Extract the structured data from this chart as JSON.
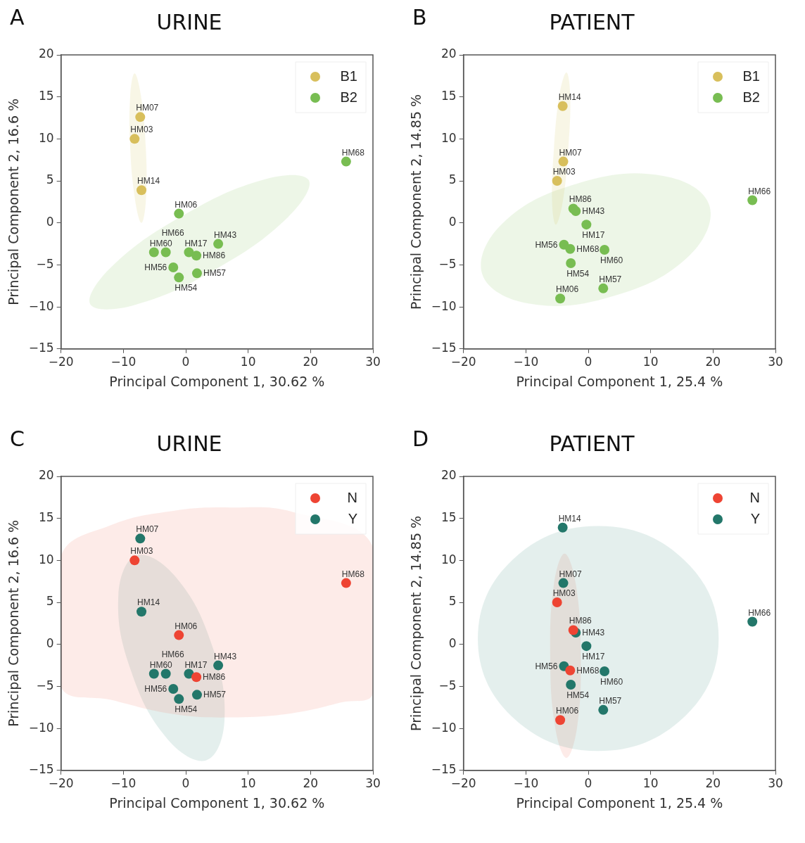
{
  "chart_data": [
    {
      "type": "scatter",
      "title": "URINE",
      "xlabel": "Principal Component 1, 30.62 %",
      "ylabel": "Principal Component 2, 16.6 %",
      "xlim": [
        -20,
        30
      ],
      "ylim": [
        -15,
        20
      ],
      "xticks": [
        -20,
        -10,
        0,
        10,
        20,
        30
      ],
      "yticks": [
        -15,
        -10,
        -5,
        0,
        5,
        10,
        15,
        20
      ],
      "legend": "top right",
      "series": [
        {
          "type": "area",
          "color": "#d6c766",
          "x": [
            -8.2,
            -7.2,
            -6.4,
            -6.4,
            -7.1,
            -8.1,
            -8.9,
            -8.9
          ],
          "values": [
            17.8,
            15.2,
            8.9,
            2.6,
            0.0,
            2.6,
            8.9,
            15.2
          ]
        },
        {
          "type": "area",
          "color": "#8cc46a",
          "x": [
            19.7,
            12.7,
            -0.4,
            -12.0,
            -15.3,
            -8.3,
            4.8,
            16.4
          ],
          "values": [
            5.1,
            5.2,
            0.9,
            -5.3,
            -9.7,
            -9.8,
            -5.5,
            0.7
          ]
        },
        {
          "name": "B1",
          "color": "#d8bf5c",
          "marker": "circle",
          "x": [
            -7.3,
            -8.2,
            -7.1
          ],
          "values": [
            12.6,
            10.0,
            3.9
          ]
        },
        {
          "name": "B2",
          "color": "#78bd52",
          "marker": "circle",
          "x": [
            -1.1,
            25.7,
            -5.1,
            -3.2,
            0.5,
            1.7,
            5.2,
            -2.0,
            -1.1,
            1.8
          ],
          "values": [
            1.1,
            7.3,
            -3.5,
            -3.5,
            -3.5,
            -3.9,
            -2.5,
            -5.3,
            -6.5,
            -6.0
          ]
        }
      ],
      "annotations": [
        "A",
        {
          "text": "HM07",
          "x": -7.3,
          "y": 12.6
        },
        {
          "text": "HM03",
          "x": -8.2,
          "y": 10.0
        },
        {
          "text": "HM14",
          "x": -7.1,
          "y": 3.9
        },
        {
          "text": "HM06",
          "x": -1.1,
          "y": 1.1
        },
        {
          "text": "HM68",
          "x": 25.7,
          "y": 7.3
        },
        {
          "text": "HM60",
          "x": -5.1,
          "y": -3.5
        },
        {
          "text": "HM66",
          "x": -3.2,
          "y": -3.5
        },
        {
          "text": "HM17",
          "x": 0.5,
          "y": -3.5
        },
        {
          "text": "HM86",
          "x": 1.7,
          "y": -3.9
        },
        {
          "text": "HM43",
          "x": 5.2,
          "y": -2.5
        },
        {
          "text": "HM56",
          "x": -2.0,
          "y": -5.3
        },
        {
          "text": "HM54",
          "x": -1.1,
          "y": -6.5
        },
        {
          "text": "HM57",
          "x": 1.8,
          "y": -6.0
        }
      ]
    },
    {
      "type": "scatter",
      "title": "PATIENT",
      "xlabel": "Principal Component 1, 25.4 %",
      "ylabel": "Principal Component 2, 14.85 %",
      "xlim": [
        -20,
        30
      ],
      "ylim": [
        -15,
        20
      ],
      "xticks": [
        -20,
        -10,
        0,
        10,
        20,
        30
      ],
      "yticks": [
        -15,
        -10,
        -5,
        0,
        5,
        10,
        15,
        20
      ],
      "legend": "top right",
      "series": [
        {
          "type": "area",
          "color": "#d6c766",
          "x": [
            -3.5,
            -2.9,
            -3.2,
            -4.1,
            -5.2,
            -5.8,
            -5.5,
            -4.6
          ],
          "values": [
            17.9,
            15.3,
            8.9,
            2.5,
            -0.2,
            2.5,
            8.9,
            15.3
          ]
        },
        {
          "type": "area",
          "color": "#8cc46a",
          "x": [
            19.4,
            16.2,
            4.1,
            -9.6,
            -17.0,
            -13.8,
            -1.7,
            12.0
          ],
          "values": [
            2.1,
            -3.9,
            -8.7,
            -9.6,
            -6.1,
            -0.1,
            4.7,
            5.6
          ]
        },
        {
          "name": "B1",
          "color": "#d8bf5c",
          "marker": "circle",
          "x": [
            -4.1,
            -4.0,
            -5.0
          ],
          "values": [
            13.9,
            7.3,
            5.0
          ]
        },
        {
          "name": "B2",
          "color": "#78bd52",
          "marker": "circle",
          "x": [
            -2.4,
            -2.0,
            -0.3,
            -3.9,
            -2.9,
            2.6,
            -2.8,
            -4.5,
            2.4,
            26.3
          ],
          "values": [
            1.7,
            1.4,
            -0.2,
            -2.6,
            -3.1,
            -3.2,
            -4.8,
            -9.0,
            -7.8,
            2.7
          ]
        }
      ],
      "annotations": [
        "B",
        {
          "text": "HM14",
          "x": -4.1,
          "y": 13.9
        },
        {
          "text": "HM07",
          "x": -4.0,
          "y": 7.3
        },
        {
          "text": "HM03",
          "x": -5.0,
          "y": 5.0
        },
        {
          "text": "HM86",
          "x": -2.4,
          "y": 1.7
        },
        {
          "text": "HM43",
          "x": -2.0,
          "y": 1.4
        },
        {
          "text": "HM17",
          "x": -0.3,
          "y": -0.2
        },
        {
          "text": "HM56",
          "x": -3.9,
          "y": -2.6
        },
        {
          "text": "HM68",
          "x": -2.9,
          "y": -3.1
        },
        {
          "text": "HM60",
          "x": 2.6,
          "y": -3.2
        },
        {
          "text": "HM54",
          "x": -2.8,
          "y": -4.8
        },
        {
          "text": "HM06",
          "x": -4.5,
          "y": -9.0
        },
        {
          "text": "HM57",
          "x": 2.4,
          "y": -7.8
        },
        {
          "text": "HM66",
          "x": 26.3,
          "y": 2.7
        }
      ]
    },
    {
      "type": "scatter",
      "title": "URINE",
      "xlabel": "Principal Component 1, 30.62 %",
      "ylabel": "Principal Component 2, 16.6 %",
      "xlim": [
        -20,
        30
      ],
      "ylim": [
        -15,
        20
      ],
      "xticks": [
        -20,
        -10,
        0,
        10,
        20,
        30
      ],
      "yticks": [
        -15,
        -10,
        -5,
        0,
        5,
        10,
        15,
        20
      ],
      "legend": "top right",
      "series": [
        {
          "type": "area",
          "color": "#f08070",
          "x": [
            -20,
            -12,
            -2,
            7.1,
            17,
            30,
            30,
            25,
            17,
            7.1,
            -2,
            -12,
            -20
          ],
          "values": [
            10.5,
            14.2,
            15.9,
            16.3,
            15.8,
            11.6,
            -5.8,
            -6.9,
            -8.2,
            -8.7,
            -8.3,
            -6.6,
            -5.0
          ]
        },
        {
          "type": "area",
          "color": "#5a9a90",
          "x": [
            -7.9,
            -1.7,
            4.2,
            6.2,
            3.3,
            -2.9,
            -8.8,
            -10.8
          ],
          "values": [
            10.6,
            8.1,
            -0.1,
            -9.1,
            -13.8,
            -11.3,
            -3.1,
            5.9
          ]
        },
        {
          "name": "N",
          "color": "#ee4433",
          "marker": "circle",
          "x": [
            -8.2,
            -1.1,
            25.7,
            1.7
          ],
          "values": [
            10.0,
            1.1,
            7.3,
            -3.9
          ]
        },
        {
          "name": "Y",
          "color": "#23776a",
          "marker": "circle",
          "x": [
            -7.3,
            -7.1,
            -5.1,
            -3.2,
            0.5,
            5.2,
            -2.0,
            -1.1,
            1.8
          ],
          "values": [
            12.6,
            3.9,
            -3.5,
            -3.5,
            -3.5,
            -2.5,
            -5.3,
            -6.5,
            -6.0
          ]
        }
      ],
      "annotations": [
        "C",
        {
          "text": "HM07",
          "x": -7.3,
          "y": 12.6
        },
        {
          "text": "HM03",
          "x": -8.2,
          "y": 10.0
        },
        {
          "text": "HM14",
          "x": -7.1,
          "y": 3.9
        },
        {
          "text": "HM06",
          "x": -1.1,
          "y": 1.1
        },
        {
          "text": "HM68",
          "x": 25.7,
          "y": 7.3
        },
        {
          "text": "HM60",
          "x": -5.1,
          "y": -3.5
        },
        {
          "text": "HM66",
          "x": -3.2,
          "y": -3.5
        },
        {
          "text": "HM17",
          "x": 0.5,
          "y": -3.5
        },
        {
          "text": "HM86",
          "x": 1.7,
          "y": -3.9
        },
        {
          "text": "HM43",
          "x": 5.2,
          "y": -2.5
        },
        {
          "text": "HM56",
          "x": -2.0,
          "y": -5.3
        },
        {
          "text": "HM54",
          "x": -1.1,
          "y": -6.5
        },
        {
          "text": "HM57",
          "x": 1.8,
          "y": -6.0
        }
      ]
    },
    {
      "type": "scatter",
      "title": "PATIENT",
      "xlabel": "Principal Component 1, 25.4 %",
      "ylabel": "Principal Component 2, 14.85 %",
      "xlim": [
        -20,
        30
      ],
      "ylim": [
        -15,
        20
      ],
      "xticks": [
        -20,
        -10,
        0,
        10,
        20,
        30
      ],
      "yticks": [
        -15,
        -10,
        -5,
        0,
        5,
        10,
        15,
        20
      ],
      "legend": "top right",
      "series": [
        {
          "type": "area",
          "color": "#5a9a90",
          "x": [
            20.9,
            15.3,
            1.6,
            -12.1,
            -17.7,
            -12.1,
            1.6,
            15.3
          ],
          "values": [
            0.7,
            10.1,
            14.1,
            10.1,
            0.7,
            -8.7,
            -12.7,
            -8.7
          ]
        },
        {
          "type": "area",
          "color": "#f08070",
          "x": [
            -3.8,
            -2.0,
            -1.2,
            -1.8,
            -3.5,
            -5.3,
            -6.1,
            -5.5
          ],
          "values": [
            10.8,
            7.2,
            -1.4,
            -9.9,
            -13.5,
            -9.9,
            -1.4,
            7.2
          ]
        },
        {
          "name": "N",
          "color": "#ee4433",
          "marker": "circle",
          "x": [
            -5.0,
            -2.4,
            -2.9,
            -4.5
          ],
          "values": [
            5.0,
            1.7,
            -3.1,
            -9.0
          ]
        },
        {
          "name": "Y",
          "color": "#23776a",
          "marker": "circle",
          "x": [
            -4.1,
            -4.0,
            -2.0,
            -0.3,
            -3.9,
            2.6,
            -2.8,
            2.4,
            26.3
          ],
          "values": [
            13.9,
            7.3,
            1.4,
            -0.2,
            -2.6,
            -3.2,
            -4.8,
            -7.8,
            2.7
          ]
        }
      ],
      "annotations": [
        "D",
        {
          "text": "HM14",
          "x": -4.1,
          "y": 13.9
        },
        {
          "text": "HM07",
          "x": -4.0,
          "y": 7.3
        },
        {
          "text": "HM03",
          "x": -5.0,
          "y": 5.0
        },
        {
          "text": "HM86",
          "x": -2.4,
          "y": 1.7
        },
        {
          "text": "HM43",
          "x": -2.0,
          "y": 1.4
        },
        {
          "text": "HM17",
          "x": -0.3,
          "y": -0.2
        },
        {
          "text": "HM56",
          "x": -3.9,
          "y": -2.6
        },
        {
          "text": "HM68",
          "x": -2.9,
          "y": -3.1
        },
        {
          "text": "HM60",
          "x": 2.6,
          "y": -3.2
        },
        {
          "text": "HM54",
          "x": -2.8,
          "y": -4.8
        },
        {
          "text": "HM06",
          "x": -4.5,
          "y": -9.0
        },
        {
          "text": "HM57",
          "x": 2.4,
          "y": -7.8
        },
        {
          "text": "HM66",
          "x": 26.3,
          "y": 2.7
        }
      ]
    }
  ]
}
